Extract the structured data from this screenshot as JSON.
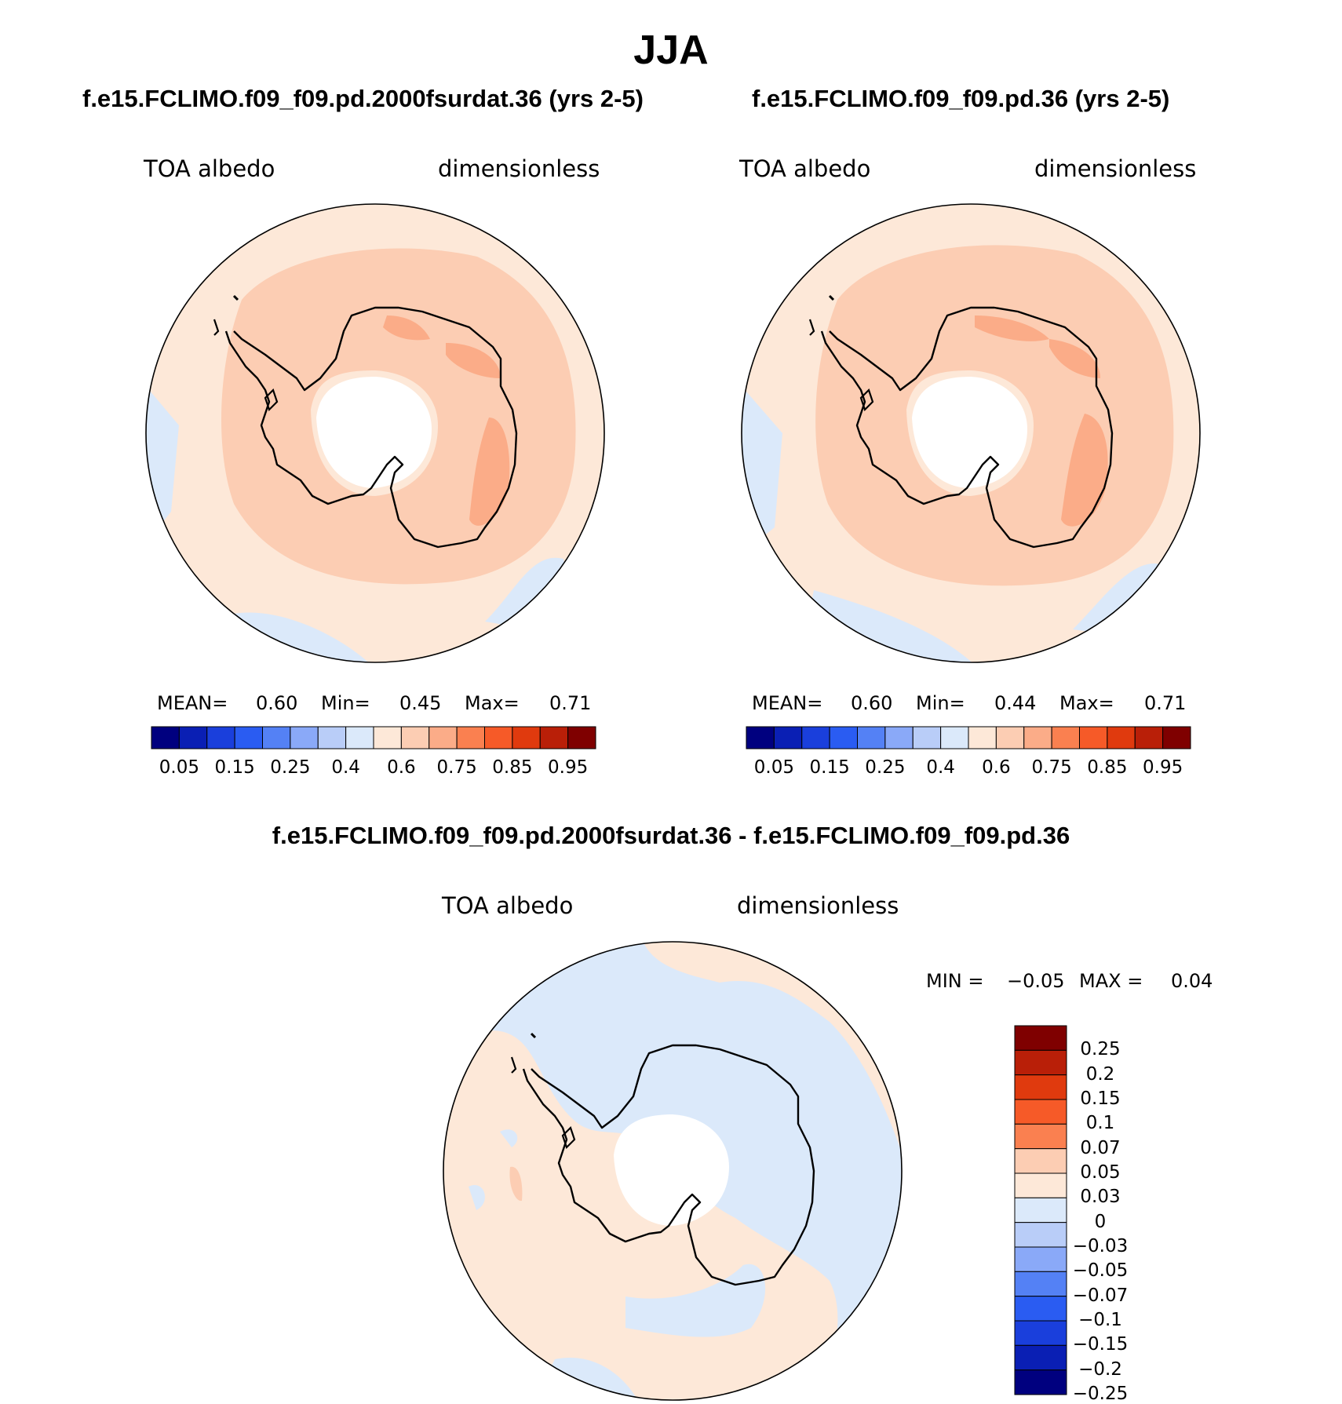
{
  "figure": {
    "title": "JJA",
    "panels": [
      {
        "title": "f.e15.FCLIMO.f09_f09.pd.2000fsurdat.36 (yrs 2-5)",
        "variable": "TOA albedo",
        "units": "dimensionless",
        "stats": {
          "mean_label": "MEAN=",
          "mean": "0.60",
          "min_label": "Min=",
          "min": "0.45",
          "max_label": "Max=",
          "max": "0.71"
        }
      },
      {
        "title": "f.e15.FCLIMO.f09_f09.pd.36 (yrs 2-5)",
        "variable": "TOA albedo",
        "units": "dimensionless",
        "stats": {
          "mean_label": "MEAN=",
          "mean": "0.60",
          "min_label": "Min=",
          "min": "0.44",
          "max_label": "Max=",
          "max": "0.71"
        }
      },
      {
        "title": "f.e15.FCLIMO.f09_f09.pd.2000fsurdat.36 - f.e15.FCLIMO.f09_f09.pd.36",
        "variable": "TOA albedo",
        "units": "dimensionless",
        "stats": {
          "min_label": "MIN =",
          "min": "−0.05",
          "max_label": "MAX =",
          "max": "0.04"
        }
      }
    ],
    "colorbar_abs": {
      "colors": [
        "#00007f",
        "#0a1fb4",
        "#1a3fdc",
        "#2a5cf2",
        "#5481f5",
        "#8aa9f8",
        "#b9cdf8",
        "#dbe9fa",
        "#fde8d8",
        "#fccdb3",
        "#fbac88",
        "#fa8050",
        "#f65a28",
        "#e03a0e",
        "#b91f08",
        "#7f0000"
      ],
      "tick_labels": [
        "0.05",
        "0.15",
        "0.25",
        "0.4",
        "0.6",
        "0.75",
        "0.85",
        "0.95"
      ]
    },
    "colorbar_diff": {
      "colors_top_to_bottom": [
        "#7f0000",
        "#b91f08",
        "#e03a0e",
        "#f65a28",
        "#fa8050",
        "#fccdb3",
        "#fde8d8",
        "#dbe9fa",
        "#b9cdf8",
        "#8aa9f8",
        "#5481f5",
        "#2a5cf2",
        "#1a3fdc",
        "#0a1fb4",
        "#00007f"
      ],
      "tick_labels_top_to_bottom": [
        "0.25",
        "0.2",
        "0.15",
        "0.1",
        "0.07",
        "0.05",
        "0.03",
        "0",
        "−0.03",
        "−0.05",
        "−0.07",
        "−0.1",
        "−0.15",
        "−0.2",
        "−0.25"
      ]
    }
  }
}
